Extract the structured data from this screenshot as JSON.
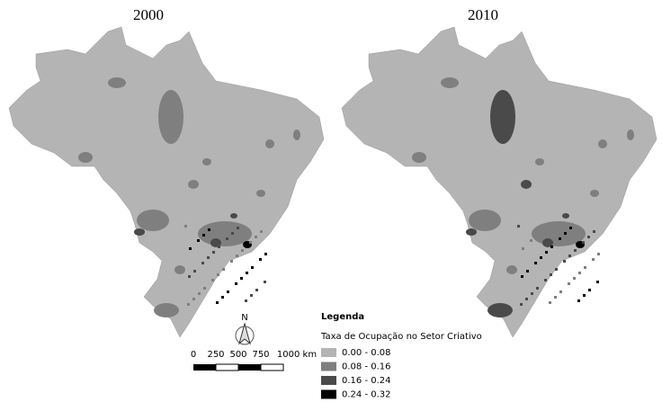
{
  "maps": [
    {
      "title": "2000"
    },
    {
      "title": "2010"
    }
  ],
  "legend": {
    "title": "Legenda",
    "subtitle": "Taxa de Ocupação no Setor Criativo",
    "classes": [
      {
        "label": "0.00 - 0.08",
        "color": "#b4b4b4"
      },
      {
        "label": "0.08 - 0.16",
        "color": "#7f7f7f"
      },
      {
        "label": "0.16 - 0.24",
        "color": "#4a4a4a"
      },
      {
        "label": "0.24 - 0.32",
        "color": "#000000"
      }
    ]
  },
  "scale_bar": {
    "labels": [
      "0",
      "250",
      "500",
      "750",
      "1000 km"
    ]
  },
  "north_arrow": {
    "label": "N"
  }
}
